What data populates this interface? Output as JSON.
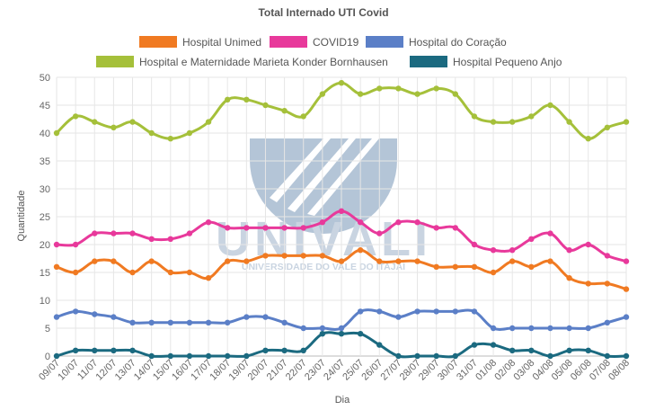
{
  "chart_data": {
    "type": "line",
    "title": "Total Internado UTI Covid",
    "xlabel": "Dia",
    "ylabel": "Quantidade",
    "ylim": [
      0,
      50
    ],
    "yticks": [
      0,
      5,
      10,
      15,
      20,
      25,
      30,
      35,
      40,
      45,
      50
    ],
    "grid": true,
    "legend_position": "top",
    "categories": [
      "09/07",
      "10/07",
      "11/07",
      "12/07",
      "13/07",
      "14/07",
      "15/07",
      "16/07",
      "17/07",
      "18/07",
      "19/07",
      "20/07",
      "21/07",
      "22/07",
      "23/07",
      "24/07",
      "25/07",
      "26/07",
      "27/07",
      "28/07",
      "29/07",
      "30/07",
      "31/07",
      "01/08",
      "02/08",
      "03/08",
      "04/08",
      "05/08",
      "06/08",
      "07/08",
      "08/08"
    ],
    "series": [
      {
        "name": "Hospital Unimed",
        "color": "#f07a22",
        "values": [
          16,
          15,
          17,
          17,
          15,
          17,
          15,
          15,
          14,
          17,
          17,
          18,
          18,
          18,
          18,
          17,
          19,
          17,
          17,
          17,
          16,
          16,
          16,
          15,
          17,
          16,
          17,
          14,
          13,
          13,
          12
        ]
      },
      {
        "name": "COVID19",
        "color": "#e8399b",
        "values": [
          20,
          20,
          22,
          22,
          22,
          21,
          21,
          22,
          24,
          23,
          23,
          23,
          23,
          23,
          24,
          26,
          24,
          22,
          24,
          24,
          23,
          23,
          20,
          19,
          19,
          21,
          22,
          19,
          20,
          18,
          17
        ]
      },
      {
        "name": "Hospital do Coração",
        "color": "#5b7fc7",
        "values": [
          7,
          8,
          7.5,
          7,
          6,
          6,
          6,
          6,
          6,
          6,
          7,
          7,
          6,
          5,
          5,
          5,
          8,
          8,
          7,
          8,
          8,
          8,
          8,
          5,
          5,
          5,
          5,
          5,
          5,
          6,
          7
        ]
      },
      {
        "name": "Hospital e Maternidade Marieta Konder Bornhausen",
        "color": "#a5c03a",
        "values": [
          40,
          43,
          42,
          41,
          42,
          40,
          39,
          40,
          42,
          46,
          46,
          45,
          44,
          43,
          47,
          49,
          47,
          48,
          48,
          47,
          48,
          47,
          43,
          42,
          42,
          43,
          45,
          42,
          39,
          41,
          42
        ]
      },
      {
        "name": "Hospital Pequeno Anjo",
        "color": "#1b6a80",
        "values": [
          0,
          1,
          1,
          1,
          1,
          0,
          0,
          0,
          0,
          0,
          0,
          1,
          1,
          1,
          4,
          4,
          4,
          2,
          0,
          0,
          0,
          0,
          2,
          2,
          1,
          1,
          0,
          1,
          1,
          0,
          0
        ]
      }
    ]
  },
  "watermark": {
    "brand": "UNIVALI",
    "subtitle": "UNIVERSIDADE DO VALE DO ITAJAÍ"
  }
}
